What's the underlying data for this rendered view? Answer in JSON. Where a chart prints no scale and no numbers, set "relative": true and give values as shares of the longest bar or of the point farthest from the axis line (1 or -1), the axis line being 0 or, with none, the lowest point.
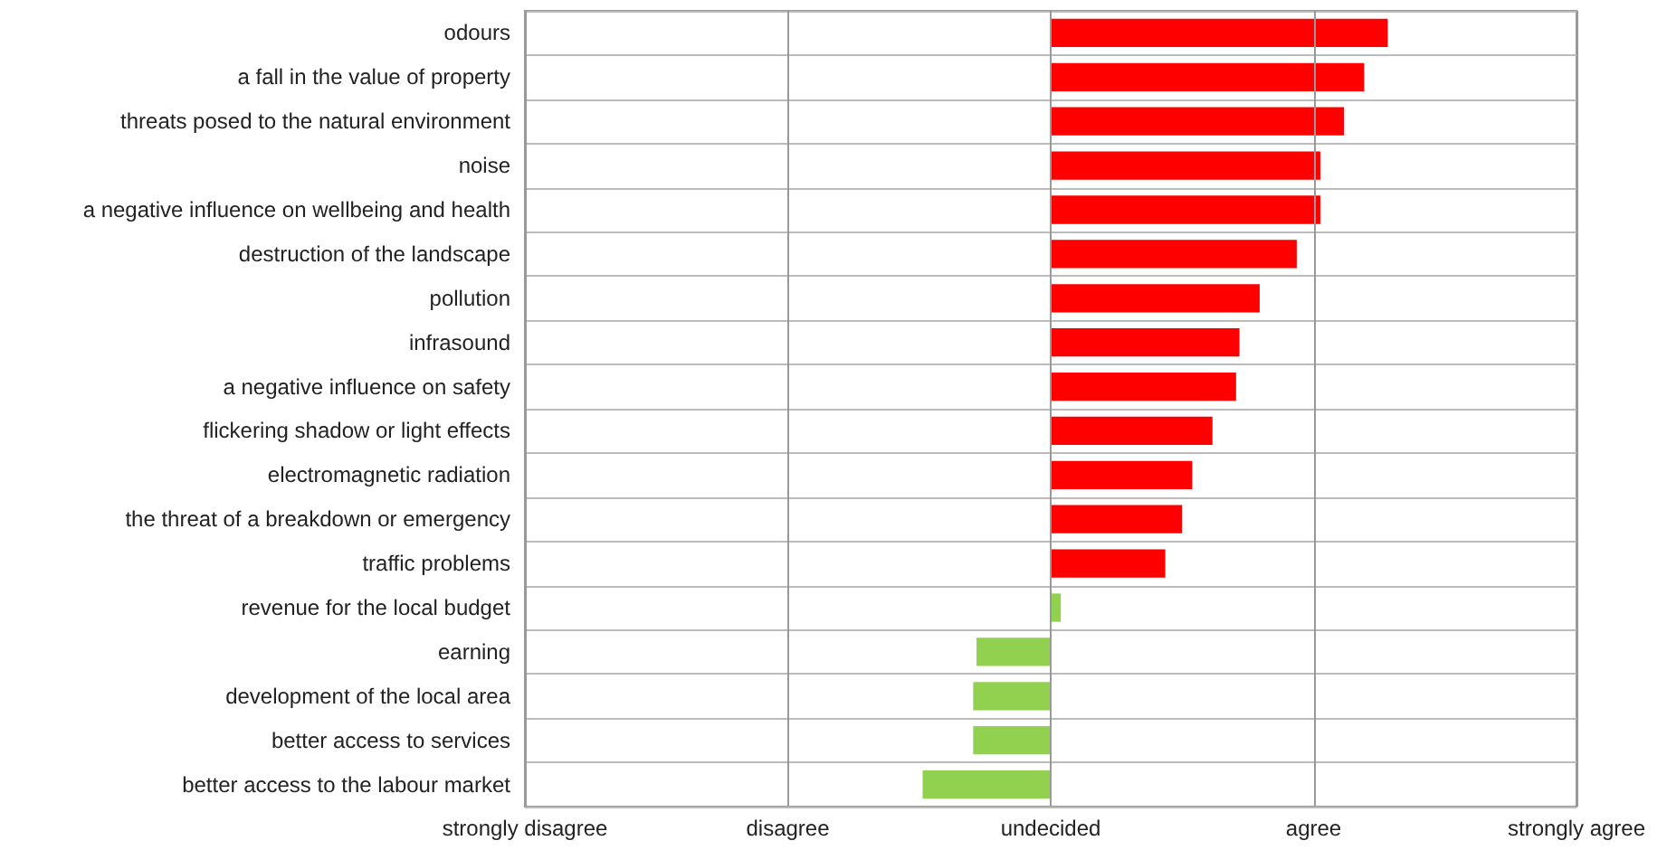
{
  "chart_data": {
    "type": "bar",
    "orientation": "horizontal",
    "categories": [
      "odours",
      "a fall in the value of property",
      "threats posed to the natural environment",
      "noise",
      "a negative influence on wellbeing and health",
      "destruction of the landscape",
      "pollution",
      "infrasound",
      "a negative influence on safety",
      "flickering shadow or light effects",
      "electromagnetic radiation",
      "the threat of a breakdown or emergency",
      "traffic problems",
      "revenue for the local budget",
      "earning",
      "development of the local area",
      "better access to services",
      "better access to the labour market"
    ],
    "values": [
      1,
      0.93,
      0.87,
      0.8,
      0.8,
      0.73,
      0.62,
      0.56,
      0.55,
      0.48,
      0.42,
      0.39,
      0.34,
      0.03,
      -0.22,
      -0.23,
      -0.23,
      -0.38
    ],
    "relative": true,
    "colors": [
      "#ff0000",
      "#ff0000",
      "#ff0000",
      "#ff0000",
      "#ff0000",
      "#ff0000",
      "#ff0000",
      "#ff0000",
      "#ff0000",
      "#ff0000",
      "#ff0000",
      "#ff0000",
      "#ff0000",
      "#92d050",
      "#92d050",
      "#92d050",
      "#92d050",
      "#92d050"
    ],
    "ref_lines": [
      {
        "axis": "x",
        "value": -1.56,
        "label": "strongly disagree",
        "color": "#999999"
      },
      {
        "axis": "x",
        "value": -0.78,
        "label": "disagree",
        "color": "#999999"
      },
      {
        "axis": "x",
        "value": 0,
        "label": "undecided",
        "color": "#999999"
      },
      {
        "axis": "x",
        "value": 0.78,
        "label": "agree",
        "color": "#999999"
      },
      {
        "axis": "x",
        "value": 1.56,
        "label": "strongly agree",
        "color": "#999999"
      }
    ],
    "grid": "y"
  }
}
